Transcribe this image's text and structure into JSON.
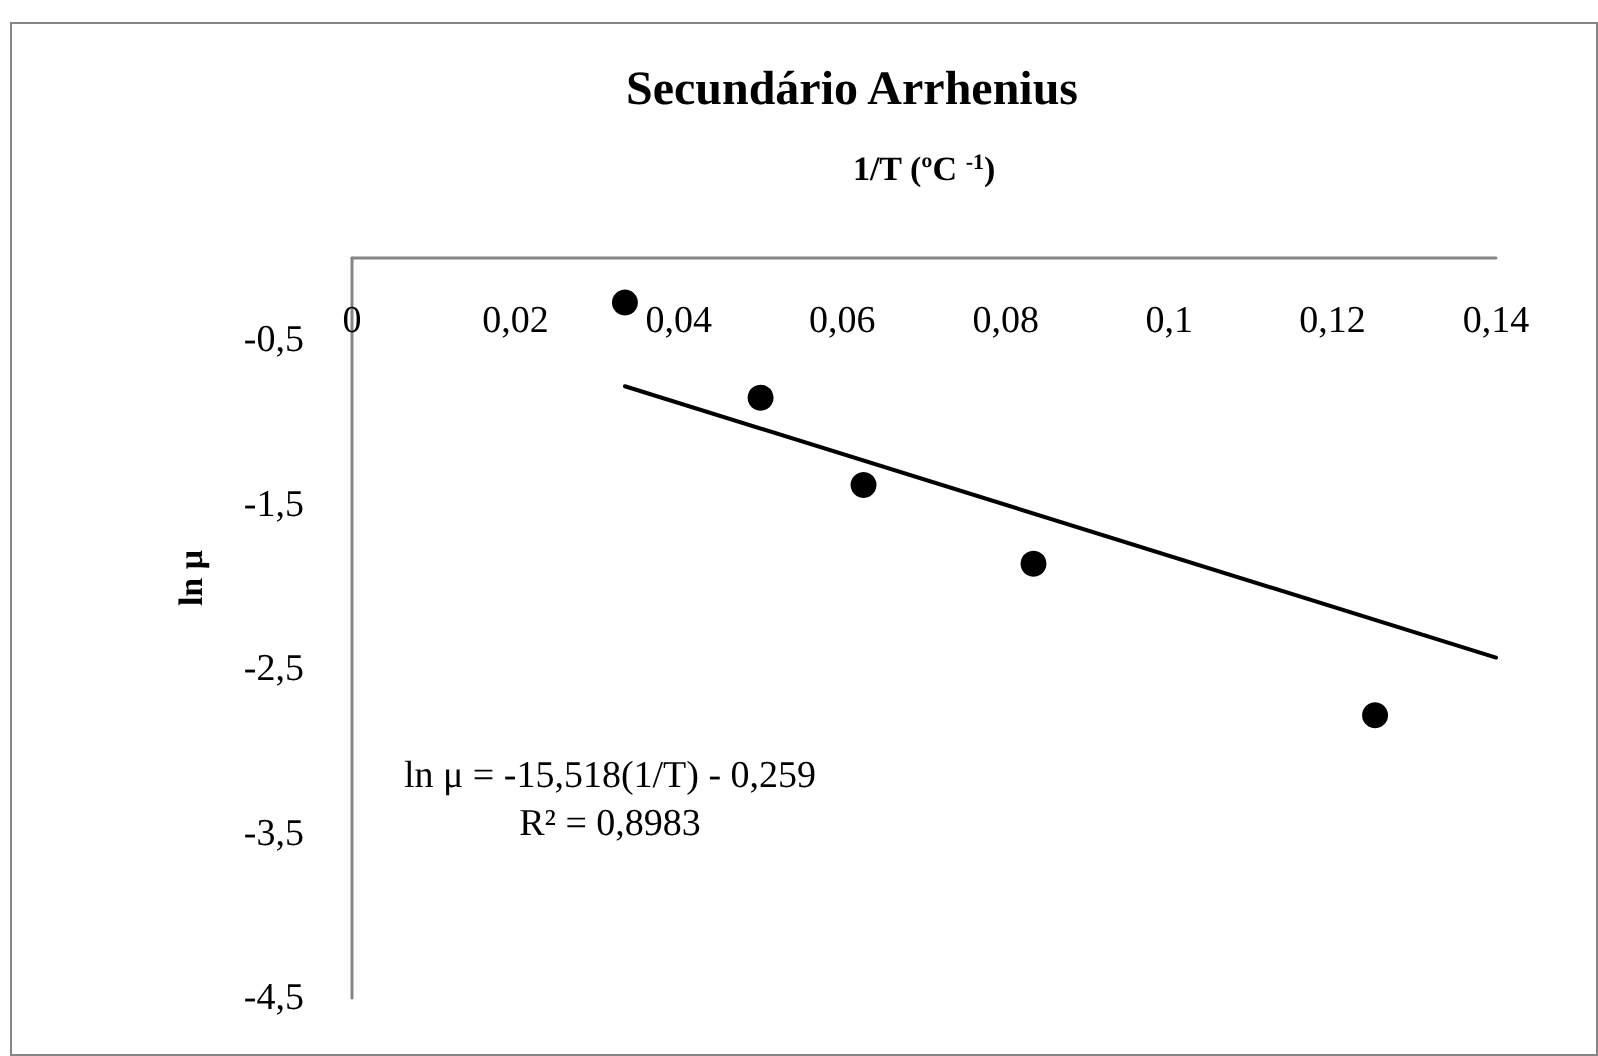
{
  "chart_data": {
    "type": "scatter",
    "title": "Secundário Arrhenius",
    "xlabel": "1/T (ºC $^{-1}$)",
    "ylabel": "ln μ",
    "xlim": [
      0,
      0.14
    ],
    "xticks": [
      0,
      {
        "value": 0.02,
        "label": "0,02"
      },
      {
        "value": 0.04,
        "label": "0,04"
      },
      {
        "value": 0.06,
        "label": "0,06"
      },
      {
        "value": 0.08,
        "label": "0,08"
      },
      {
        "value": 0.1,
        "label": "0,1"
      },
      {
        "value": 0.12,
        "label": "0,12"
      },
      {
        "value": 0.14,
        "label": "0,14"
      }
    ],
    "ylim": [
      -4.5,
      0
    ],
    "yticks": [
      {
        "value": -4.5,
        "label": "-4,5"
      },
      {
        "value": -3.5,
        "label": "-3,5"
      },
      {
        "value": -2.5,
        "label": "-2,5"
      },
      {
        "value": -1.5,
        "label": "-1,5"
      },
      {
        "value": -0.5,
        "label": "-0,5"
      }
    ],
    "series": [
      {
        "x": [
          0.0334,
          0.05,
          0.0626,
          0.0834,
          0.1252
        ],
        "values": [
          -0.27,
          -0.85,
          -1.38,
          -1.86,
          -2.78
        ],
        "color": "#000000",
        "marker": "circle"
      },
      {
        "type": "line",
        "x": [
          0.0334,
          0.14
        ],
        "values": [
          -0.78,
          -2.43
        ],
        "color": "#000000",
        "marker": "none",
        "line_style": "solid"
      }
    ],
    "annotations": [
      "ln μ = -15,518(1/T) - 0,259",
      "R² = 0,8983"
    ],
    "grid": false
  }
}
